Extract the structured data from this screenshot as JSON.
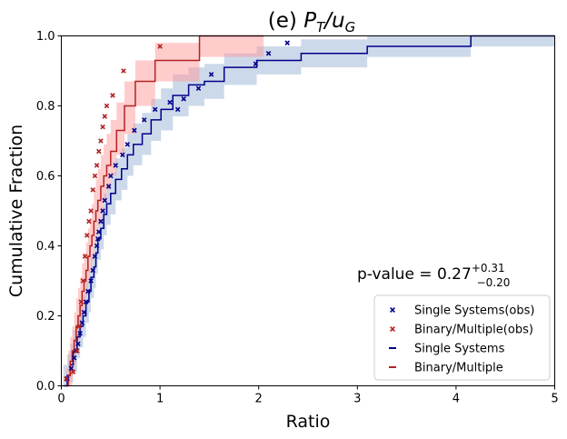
{
  "chart_data": {
    "type": "line",
    "title": "(e) P_T/u_G",
    "title_parts": {
      "prefix": "(e) ",
      "p": "P",
      "sub_t": "T",
      "slash": "/",
      "u": "u",
      "sub_g": "G"
    },
    "xlabel": "Ratio",
    "ylabel": "Cumulative Fraction",
    "xlim": [
      0,
      5
    ],
    "ylim": [
      0,
      1
    ],
    "xticks": [
      0,
      1,
      2,
      3,
      4,
      5
    ],
    "yticks": [
      0.0,
      0.2,
      0.4,
      0.6,
      0.8,
      1.0
    ],
    "xtick_labels": [
      "0",
      "1",
      "2",
      "3",
      "4",
      "5"
    ],
    "ytick_labels": [
      "0.0",
      "0.2",
      "0.4",
      "0.6",
      "0.8",
      "1.0"
    ],
    "annotation": {
      "prefix": "p-value = 0.27",
      "sup": "+0.31",
      "sub": "−0.20",
      "x": 3.0,
      "y": 0.3
    },
    "legend": {
      "position": "lower-right",
      "entries": [
        {
          "label": "Single Systems(obs)",
          "marker": "x",
          "color": "#00008b"
        },
        {
          "label": "Binary/Multiple(obs)",
          "marker": "x",
          "color": "#b22222"
        },
        {
          "label": "Single Systems",
          "marker": "line",
          "color": "#00008b"
        },
        {
          "label": "Binary/Multiple",
          "marker": "line",
          "color": "#b22222"
        }
      ]
    },
    "series": [
      {
        "name": "Single Systems",
        "color": "#00008b",
        "band_color": "#b0c4de",
        "steps": [
          [
            0.02,
            0.0,
            0.0,
            0.06
          ],
          [
            0.06,
            0.03,
            0.0,
            0.09
          ],
          [
            0.09,
            0.06,
            0.01,
            0.12
          ],
          [
            0.12,
            0.1,
            0.04,
            0.16
          ],
          [
            0.16,
            0.14,
            0.08,
            0.2
          ],
          [
            0.19,
            0.17,
            0.11,
            0.23
          ],
          [
            0.22,
            0.2,
            0.14,
            0.26
          ],
          [
            0.25,
            0.24,
            0.18,
            0.3
          ],
          [
            0.28,
            0.27,
            0.21,
            0.33
          ],
          [
            0.3,
            0.31,
            0.25,
            0.37
          ],
          [
            0.33,
            0.34,
            0.28,
            0.4
          ],
          [
            0.35,
            0.38,
            0.32,
            0.44
          ],
          [
            0.37,
            0.42,
            0.36,
            0.48
          ],
          [
            0.4,
            0.45,
            0.39,
            0.51
          ],
          [
            0.43,
            0.49,
            0.43,
            0.55
          ],
          [
            0.46,
            0.52,
            0.46,
            0.58
          ],
          [
            0.5,
            0.55,
            0.49,
            0.61
          ],
          [
            0.55,
            0.59,
            0.53,
            0.65
          ],
          [
            0.61,
            0.62,
            0.56,
            0.68
          ],
          [
            0.67,
            0.66,
            0.6,
            0.72
          ],
          [
            0.73,
            0.69,
            0.63,
            0.75
          ],
          [
            0.82,
            0.72,
            0.66,
            0.78
          ],
          [
            0.91,
            0.76,
            0.7,
            0.82
          ],
          [
            1.01,
            0.79,
            0.73,
            0.85
          ],
          [
            1.13,
            0.83,
            0.77,
            0.89
          ],
          [
            1.29,
            0.86,
            0.8,
            0.91
          ],
          [
            1.45,
            0.87,
            0.82,
            0.92
          ],
          [
            1.65,
            0.91,
            0.86,
            0.95
          ],
          [
            1.98,
            0.93,
            0.89,
            0.97
          ],
          [
            2.43,
            0.95,
            0.91,
            0.99
          ],
          [
            3.1,
            0.97,
            0.94,
            1.0
          ],
          [
            4.15,
            1.0,
            0.97,
            1.0
          ],
          [
            5.0,
            1.0,
            0.97,
            1.0
          ]
        ],
        "obs_x": [
          0.06,
          0.1,
          0.13,
          0.15,
          0.17,
          0.19,
          0.21,
          0.23,
          0.25,
          0.27,
          0.3,
          0.32,
          0.34,
          0.36,
          0.37,
          0.38,
          0.4,
          0.42,
          0.44,
          0.48,
          0.5,
          0.55,
          0.62,
          0.67,
          0.74,
          0.84,
          0.95,
          1.1,
          1.18,
          1.24,
          1.39,
          1.52,
          1.97,
          2.1,
          2.29
        ],
        "obs_y": [
          0.02,
          0.05,
          0.08,
          0.1,
          0.12,
          0.15,
          0.18,
          0.21,
          0.24,
          0.27,
          0.3,
          0.33,
          0.37,
          0.4,
          0.42,
          0.44,
          0.47,
          0.5,
          0.53,
          0.57,
          0.6,
          0.63,
          0.66,
          0.69,
          0.73,
          0.76,
          0.79,
          0.81,
          0.79,
          0.82,
          0.85,
          0.89,
          0.92,
          0.95,
          0.98
        ]
      },
      {
        "name": "Binary/Multiple",
        "color": "#b22222",
        "band_color": "#ff9999",
        "steps": [
          [
            0.05,
            0.0,
            0.0,
            0.05
          ],
          [
            0.07,
            0.03,
            0.0,
            0.1
          ],
          [
            0.09,
            0.07,
            0.0,
            0.14
          ],
          [
            0.11,
            0.1,
            0.03,
            0.17
          ],
          [
            0.13,
            0.13,
            0.06,
            0.21
          ],
          [
            0.15,
            0.17,
            0.1,
            0.25
          ],
          [
            0.17,
            0.2,
            0.13,
            0.28
          ],
          [
            0.19,
            0.23,
            0.16,
            0.31
          ],
          [
            0.21,
            0.27,
            0.2,
            0.35
          ],
          [
            0.23,
            0.3,
            0.23,
            0.38
          ],
          [
            0.25,
            0.33,
            0.26,
            0.41
          ],
          [
            0.27,
            0.37,
            0.3,
            0.45
          ],
          [
            0.29,
            0.4,
            0.33,
            0.48
          ],
          [
            0.31,
            0.43,
            0.36,
            0.52
          ],
          [
            0.33,
            0.47,
            0.4,
            0.56
          ],
          [
            0.35,
            0.5,
            0.43,
            0.59
          ],
          [
            0.37,
            0.53,
            0.46,
            0.62
          ],
          [
            0.4,
            0.57,
            0.5,
            0.66
          ],
          [
            0.43,
            0.6,
            0.53,
            0.69
          ],
          [
            0.46,
            0.63,
            0.56,
            0.72
          ],
          [
            0.5,
            0.67,
            0.6,
            0.76
          ],
          [
            0.56,
            0.73,
            0.66,
            0.81
          ],
          [
            0.64,
            0.8,
            0.72,
            0.87
          ],
          [
            0.75,
            0.87,
            0.8,
            0.93
          ],
          [
            0.95,
            0.93,
            0.87,
            0.98
          ],
          [
            1.4,
            1.0,
            0.94,
            1.0
          ],
          [
            2.05,
            1.0,
            0.97,
            1.0
          ]
        ],
        "obs_x": [
          0.05,
          0.12,
          0.16,
          0.18,
          0.2,
          0.22,
          0.24,
          0.26,
          0.28,
          0.3,
          0.32,
          0.34,
          0.36,
          0.38,
          0.4,
          0.42,
          0.44,
          0.46,
          0.52,
          0.63,
          1.0
        ],
        "obs_y": [
          0.02,
          0.04,
          0.1,
          0.17,
          0.24,
          0.3,
          0.37,
          0.43,
          0.47,
          0.5,
          0.56,
          0.6,
          0.63,
          0.67,
          0.7,
          0.74,
          0.77,
          0.8,
          0.83,
          0.9,
          0.97
        ]
      }
    ]
  }
}
